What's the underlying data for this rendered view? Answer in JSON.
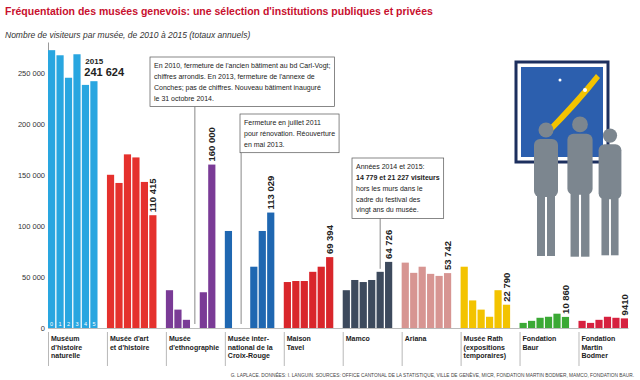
{
  "chart_data": {
    "type": "bar",
    "title": "Fréquentation des musées genevois: une sélection d'institutions publiques et privées",
    "subtitle": "Nombre de visiteurs par musée, de 2010 à 2015 (totaux annuels)",
    "source": "G. LAPLACE. DONNÉES: I. LANGUIN. SOURCES: OFFICE CANTONAL DE LA STATISTIQUE, VILLE DE GENÈVE, MICR, FONDATION MARTIN BODMER, MAMCO, FONDATION BAUR.",
    "year_labels": [
      "0",
      "1",
      "2",
      "3",
      "4",
      "5"
    ],
    "series": [
      {
        "name": "Muséum\nd'histoire\nnaturelle",
        "color": "#29a6e0",
        "values": [
          272000,
          267000,
          245000,
          268000,
          238000,
          241624
        ],
        "value_labels": [
          null,
          null,
          null,
          null,
          null,
          "241 624"
        ]
      },
      {
        "name": "Musée d'art\net d'histoire",
        "color": "#e5312d",
        "values": [
          150000,
          142000,
          170000,
          167000,
          143000,
          110415
        ],
        "value_labels": [
          null,
          null,
          null,
          null,
          null,
          "110 415"
        ]
      },
      {
        "name": "Musée\nd'ethnographie",
        "color": "#7a3b96",
        "values": [
          37000,
          18000,
          8000,
          null,
          35000,
          160000
        ],
        "value_labels": [
          null,
          null,
          null,
          null,
          null,
          "160 000"
        ]
      },
      {
        "name": "Musée inter-\nnational de la\nCroix-Rouge",
        "color": "#1f67b1",
        "values": [
          95000,
          null,
          null,
          60000,
          95000,
          113029
        ],
        "value_labels": [
          null,
          null,
          null,
          null,
          null,
          "113 029"
        ]
      },
      {
        "name": "Maison\nTavel",
        "color": "#d9262b",
        "values": [
          45000,
          46000,
          46000,
          55000,
          60000,
          69394
        ],
        "value_labels": [
          null,
          null,
          null,
          null,
          null,
          "69 394"
        ]
      },
      {
        "name": "Mamco",
        "color": "#3d4a5d",
        "values": [
          37000,
          47000,
          45000,
          47000,
          55000,
          64726
        ],
        "value_labels": [
          null,
          null,
          null,
          null,
          null,
          "64 726"
        ]
      },
      {
        "name": "Ariana",
        "color": "#d79592",
        "values": [
          64000,
          54000,
          60000,
          53000,
          51000,
          53742
        ],
        "value_labels": [
          null,
          null,
          null,
          null,
          null,
          "53 742"
        ]
      },
      {
        "name": "Musée Rath\n(expositions\ntemporaires)",
        "color": "#f3c300",
        "values": [
          60000,
          27000,
          18000,
          11000,
          37000,
          22790
        ],
        "value_labels": [
          null,
          null,
          null,
          null,
          null,
          "22 790"
        ]
      },
      {
        "name": "Fondation\nBaur",
        "color": "#3ba935",
        "values": [
          5000,
          7000,
          10000,
          11000,
          14000,
          10860
        ],
        "value_labels": [
          null,
          null,
          null,
          null,
          null,
          "10 860"
        ]
      },
      {
        "name": "Fondation\nMartin\nBodmer",
        "color": "#d6213f",
        "values": [
          7000,
          5000,
          8000,
          11000,
          10000,
          9410
        ],
        "value_labels": [
          null,
          null,
          null,
          null,
          null,
          "9410"
        ]
      }
    ],
    "annotations": [
      {
        "text": "2015"
      },
      {
        "text": "En 2010, fermeture de l'ancien bâtiment au bd Carl-Vogt;\nchiffres arrondis. En 2013, fermeture de l'annexe de\nConches; pas de chiffres. Nouveau bâtiment inauguré\nle 31 octobre 2014."
      },
      {
        "text": "Fermeture en juillet 2011\npour rénovation. Réouverture\nen mai 2013."
      },
      {
        "text": "Années 2014 et 2015:\n14 779 et 21 227 visiteurs\nhors les murs dans le\ncadre du festival des\nvingt ans du musée."
      }
    ],
    "ylim": [
      0,
      280000
    ],
    "yticks": [
      0,
      {
        "value": 50000,
        "label": "50 000"
      },
      {
        "value": 100000,
        "label": "100 000"
      },
      {
        "value": 150000,
        "label": "150 000"
      },
      {
        "value": 200000,
        "label": "200 000"
      },
      {
        "value": 250000,
        "label": "250 000"
      }
    ],
    "grid": false
  }
}
